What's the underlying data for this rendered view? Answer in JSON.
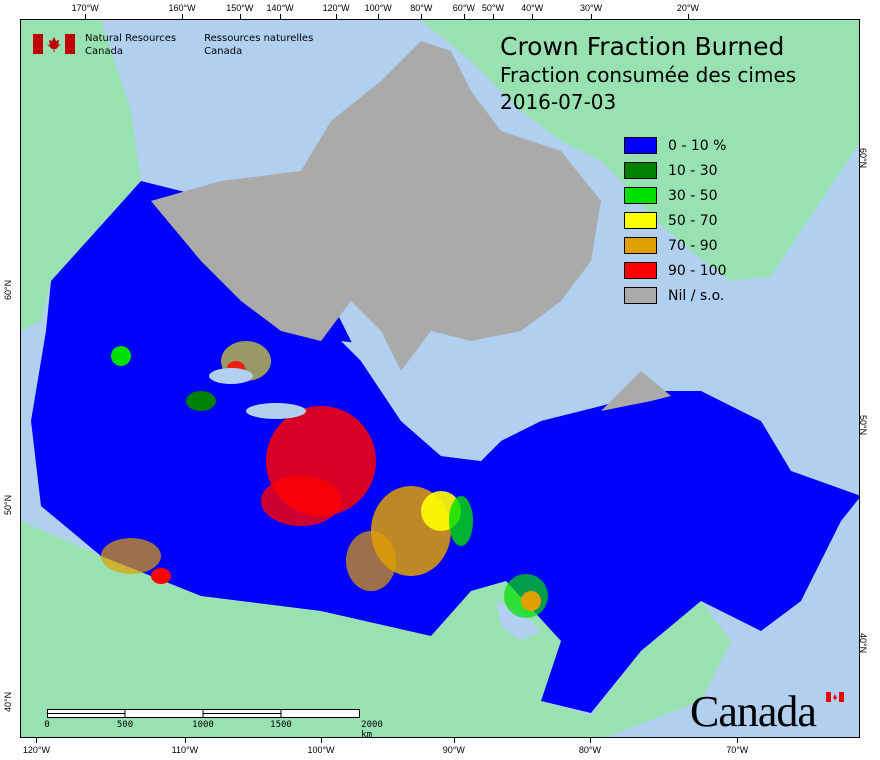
{
  "agency": {
    "name_en_line1": "Natural Resources",
    "name_en_line2": "Canada",
    "name_fr_line1": "Ressources naturelles",
    "name_fr_line2": "Canada",
    "wordmark": "Canada"
  },
  "title": {
    "en": "Crown Fraction Burned",
    "fr": "Fraction consumée des cimes",
    "date": "2016-07-03"
  },
  "legend": [
    {
      "label": "0 - 10 %",
      "color": "#0000ff"
    },
    {
      "label": "10 - 30",
      "color": "#008000"
    },
    {
      "label": "30 - 50",
      "color": "#00e000"
    },
    {
      "label": "50 - 70",
      "color": "#ffff00"
    },
    {
      "label": "70 - 90",
      "color": "#e0a000"
    },
    {
      "label": "90 - 100",
      "color": "#ff0000"
    },
    {
      "label": "Nil / s.o.",
      "color": "#aaaaaa"
    }
  ],
  "graticule": {
    "top": [
      "170°W",
      "160°W",
      "150°W",
      "140°W",
      "120°W",
      "100°W",
      "80°W",
      "60°W",
      "50°W",
      "40°W",
      "30°W",
      "20°W"
    ],
    "bottom": [
      "120°W",
      "110°W",
      "100°W",
      "90°W",
      "80°W",
      "70°W"
    ],
    "left": [
      "60°N",
      "50°N",
      "40°N"
    ],
    "right": [
      "60°N",
      "50°N",
      "40°N"
    ]
  },
  "scale_bar": {
    "labels": [
      "0",
      "500",
      "1000",
      "1500",
      "2000 km"
    ]
  },
  "colors": {
    "ocean": "#b1d0f0",
    "land": "#98e2b2",
    "no_data": "#aaaaaa"
  }
}
